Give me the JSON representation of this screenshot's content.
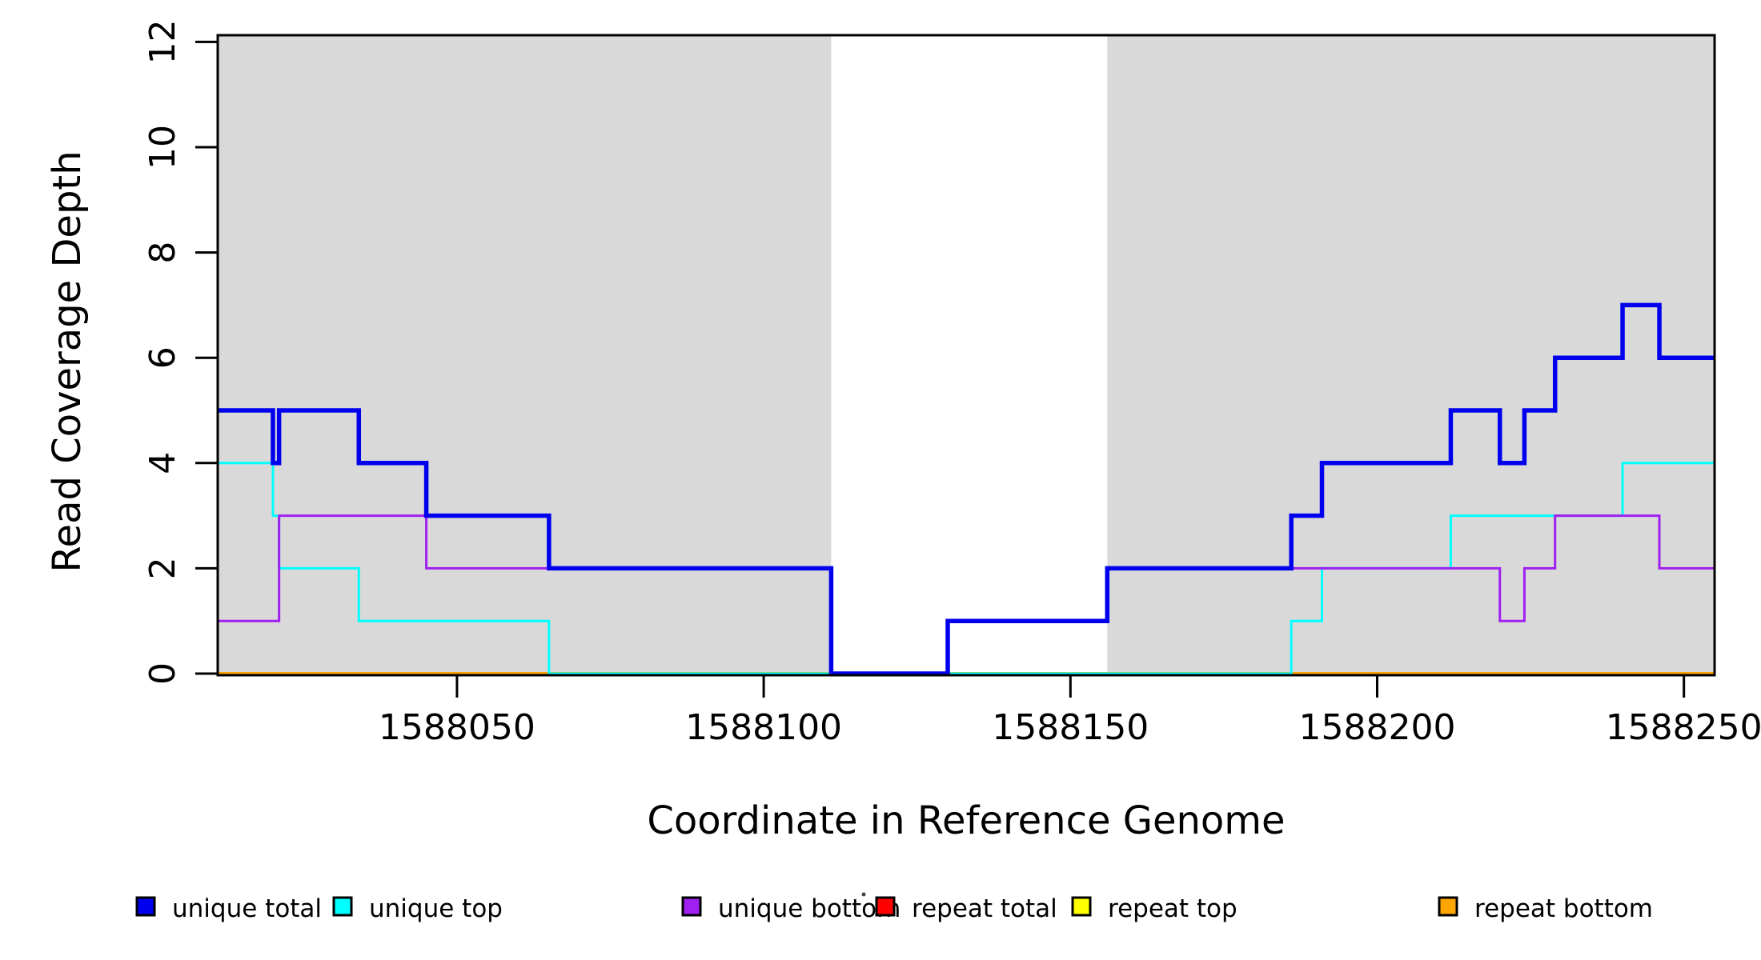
{
  "figure": {
    "background_color": "#ffffff"
  },
  "chart_data": {
    "type": "line",
    "step_style": true,
    "title": "",
    "xlabel": "Coordinate in Reference Genome",
    "ylabel": "Read Coverage Depth",
    "xlim": [
      1588011,
      1588255
    ],
    "ylim": [
      0,
      12.2
    ],
    "x_ticks": [
      1588050,
      1588100,
      1588150,
      1588200,
      1588250
    ],
    "y_ticks": [
      0,
      2,
      4,
      6,
      8,
      10,
      12
    ],
    "grid": false,
    "legend_position": "bottom",
    "shaded_region_color": "#d9d9d9",
    "shaded_regions": [
      {
        "x0": 1588011,
        "x1": 1588111
      },
      {
        "x0": 1588156,
        "x1": 1588255
      }
    ],
    "series": [
      {
        "name": "repeat total",
        "color": "#ff0000",
        "width": 3,
        "steps": [
          [
            1588011,
            0
          ]
        ]
      },
      {
        "name": "repeat top",
        "color": "#ffff00",
        "width": 3.2,
        "steps": [
          [
            1588011,
            0
          ]
        ]
      },
      {
        "name": "repeat bottom",
        "color": "#ffa500",
        "width": 4,
        "steps": [
          [
            1588011,
            0
          ]
        ]
      },
      {
        "name": "unique top",
        "color": "#00ffff",
        "width": 3,
        "steps": [
          [
            1588011,
            4
          ],
          [
            1588020,
            3
          ],
          [
            1588021,
            2
          ],
          [
            1588034,
            1
          ],
          [
            1588065,
            0
          ],
          [
            1588186,
            1
          ],
          [
            1588191,
            2
          ],
          [
            1588212,
            3
          ],
          [
            1588240,
            4
          ]
        ]
      },
      {
        "name": "unique bottom",
        "color": "#a020f0",
        "width": 3,
        "steps": [
          [
            1588011,
            1
          ],
          [
            1588021,
            3
          ],
          [
            1588045,
            2
          ],
          [
            1588111,
            0
          ],
          [
            1588130,
            1
          ],
          [
            1588156,
            2
          ],
          [
            1588220,
            1
          ],
          [
            1588224,
            2
          ],
          [
            1588229,
            3
          ],
          [
            1588246,
            2
          ]
        ]
      },
      {
        "name": "unique total",
        "color": "#0000ee",
        "width": 5.5,
        "steps": [
          [
            1588011,
            5
          ],
          [
            1588020,
            4
          ],
          [
            1588021,
            5
          ],
          [
            1588034,
            4
          ],
          [
            1588045,
            3
          ],
          [
            1588065,
            2
          ],
          [
            1588111,
            0
          ],
          [
            1588130,
            1
          ],
          [
            1588156,
            2
          ],
          [
            1588186,
            3
          ],
          [
            1588191,
            4
          ],
          [
            1588212,
            5
          ],
          [
            1588220,
            4
          ],
          [
            1588224,
            5
          ],
          [
            1588229,
            6
          ],
          [
            1588240,
            7
          ],
          [
            1588246,
            6
          ]
        ]
      }
    ],
    "legend": {
      "order": [
        "unique total",
        "unique top",
        "unique bottom",
        "repeat total",
        "repeat top",
        "repeat bottom"
      ]
    }
  }
}
